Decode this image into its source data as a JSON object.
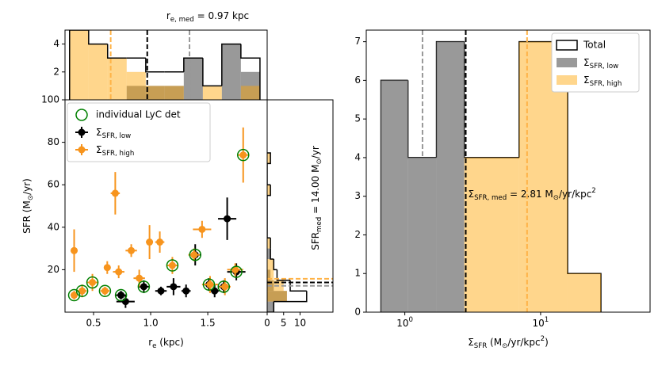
{
  "chart_data": [
    {
      "type": "histogram",
      "annotation": "r_{e, med} = 0.97 kpc",
      "bins": [
        0.29,
        0.457,
        0.623,
        0.79,
        0.957,
        1.123,
        1.29,
        1.457,
        1.623,
        1.79,
        1.957
      ],
      "series": [
        {
          "color": "#808080",
          "alpha": 0.8,
          "values": [
            0,
            0,
            0,
            1,
            1,
            1,
            3,
            0,
            4,
            2
          ]
        },
        {
          "color": "#ffa500",
          "alpha": 0.45,
          "values": [
            5,
            4,
            3,
            2,
            1,
            1,
            0,
            1,
            0,
            1
          ]
        },
        {
          "color": "#000000",
          "values": [
            5,
            4,
            3,
            3,
            2,
            2,
            3,
            1,
            4,
            3
          ]
        }
      ],
      "lines": [
        {
          "value": 0.97,
          "color": "#000000"
        },
        {
          "value": 1.34,
          "color": "#999999"
        },
        {
          "value": 0.65,
          "color": "#ffb347"
        }
      ],
      "xlim": [
        0.25,
        2.02
      ],
      "ylim": [
        0,
        5
      ],
      "yticks": [
        2,
        4
      ]
    },
    {
      "type": "scatter",
      "xlabel": "r_{e} (kpc)",
      "ylabel": "SFR (M_{⊙}/yr)",
      "xlim": [
        0.25,
        2.02
      ],
      "ylim": [
        0,
        100
      ],
      "xticks": [
        0.5,
        {
          "value": 1.0,
          "label": "1.0"
        },
        1.5
      ],
      "yticks": [
        20,
        40,
        60,
        80,
        100
      ],
      "legend": "upper left",
      "series": [
        {
          "name": "individual LyC det",
          "color": "#008000",
          "marker": "ring",
          "x": [
            0.33,
            0.4,
            0.49,
            0.6,
            0.74,
            0.94,
            1.19,
            1.39,
            1.51,
            1.64,
            1.75,
            1.81
          ],
          "values": [
            8,
            10,
            14,
            10,
            8,
            12,
            22,
            27,
            13,
            12,
            19,
            74
          ]
        },
        {
          "name": "Σ_{SFR, low}",
          "color": "#000000",
          "marker": "errorbar",
          "x": [
            0.74,
            0.78,
            0.94,
            1.09,
            1.2,
            1.31,
            1.39,
            1.51,
            1.56,
            1.64,
            1.67,
            1.75
          ],
          "values": [
            8,
            5,
            12,
            10,
            12,
            10,
            27,
            13,
            10,
            12,
            44,
            19
          ],
          "xerr": [
            0.05,
            0.08,
            0.05,
            0.05,
            0.06,
            0.04,
            0.05,
            0.05,
            0.04,
            0.05,
            0.08,
            0.08
          ],
          "yerr": [
            2,
            3,
            3,
            2,
            4,
            3,
            5,
            3,
            3,
            3,
            10,
            4
          ]
        },
        {
          "name": "Σ_{SFR, high}",
          "color": "#f7941d",
          "marker": "errorbar",
          "x": [
            0.33,
            0.33,
            0.4,
            0.49,
            0.6,
            0.62,
            0.69,
            0.72,
            0.83,
            0.9,
            0.99,
            1.08,
            1.19,
            1.38,
            1.45,
            1.52,
            1.65,
            1.74,
            1.81
          ],
          "values": [
            8,
            29,
            10,
            14,
            10,
            21,
            56,
            19,
            29,
            16,
            33,
            33,
            22,
            27,
            39,
            13,
            12,
            20,
            74
          ],
          "xerr": [
            0.03,
            0.03,
            0.04,
            0.05,
            0.04,
            0.03,
            0.04,
            0.05,
            0.05,
            0.05,
            0.03,
            0.04,
            0.05,
            0.05,
            0.08,
            0.07,
            0.05,
            0.07,
            0.05
          ],
          "yerr": [
            2,
            10,
            3,
            4,
            2,
            3,
            10,
            3,
            3,
            4,
            8,
            5,
            4,
            3,
            4,
            4,
            4,
            3,
            13
          ]
        }
      ]
    },
    {
      "type": "histogram",
      "orientation": "horizontal",
      "annotation": "SFR_{med} = 14.00 M_{⊙}/yr",
      "bins": [
        0,
        5,
        10,
        15,
        20,
        25,
        30,
        35,
        40,
        45,
        50,
        55,
        60,
        65,
        70,
        75
      ],
      "series": [
        {
          "color": "#808080",
          "alpha": 0.8,
          "values": [
            2,
            6,
            2,
            1,
            0,
            1,
            0,
            0,
            0,
            0,
            0,
            0,
            0,
            0,
            0
          ]
        },
        {
          "color": "#ffa500",
          "alpha": 0.45,
          "values": [
            0,
            6,
            5,
            2,
            2,
            0,
            1,
            0,
            0,
            0,
            0,
            1,
            0,
            0,
            1
          ]
        },
        {
          "color": "#000000",
          "values": [
            2,
            12,
            7,
            3,
            2,
            1,
            1,
            0,
            0,
            0,
            0,
            1,
            0,
            0,
            1
          ]
        }
      ],
      "lines": [
        {
          "value": 14.0,
          "color": "#000000"
        },
        {
          "value": 12.4,
          "color": "#999999"
        },
        {
          "value": 15.7,
          "color": "#ffb347"
        }
      ],
      "xlim": [
        0,
        20
      ],
      "ylim": [
        0,
        100
      ],
      "xticks": [
        0,
        5,
        10
      ]
    },
    {
      "type": "histogram",
      "xscale": "log",
      "annotation": "Σ_{SFR, med} = 2.81 M_{⊙}/yr/kpc^{2}",
      "xlabel": "Σ_{SFR} (M_{⊙}/yr/kpc^{2})",
      "legend": "upper right",
      "bins": [
        0.667,
        1.055,
        1.71,
        2.74,
        6.95,
        15.8,
        27.8
      ],
      "series": [
        {
          "name": "Total",
          "color": "#000000",
          "values": [
            6,
            4,
            7,
            4,
            7,
            1
          ]
        },
        {
          "name": "Σ_{SFR, low}",
          "color": "#808080",
          "alpha": 0.8,
          "values": [
            6,
            4,
            7,
            0,
            0,
            0
          ]
        },
        {
          "name": "Σ_{SFR, high}",
          "color": "#ffa500",
          "alpha": 0.45,
          "values": [
            0,
            0,
            0,
            4,
            7,
            1
          ]
        }
      ],
      "lines": [
        {
          "value": 2.81,
          "color": "#000000"
        },
        {
          "value": 1.35,
          "color": "#999999"
        },
        {
          "value": 7.95,
          "color": "#ffb347"
        }
      ],
      "xlim": [
        0.52,
        64
      ],
      "ylim": [
        0,
        7.3
      ],
      "xticks": [
        {
          "value": 1,
          "label": "10^{0}"
        },
        {
          "value": 10,
          "label": "10^{1}"
        }
      ],
      "yticks": [
        0,
        1,
        2,
        3,
        4,
        5,
        6,
        7
      ]
    }
  ]
}
